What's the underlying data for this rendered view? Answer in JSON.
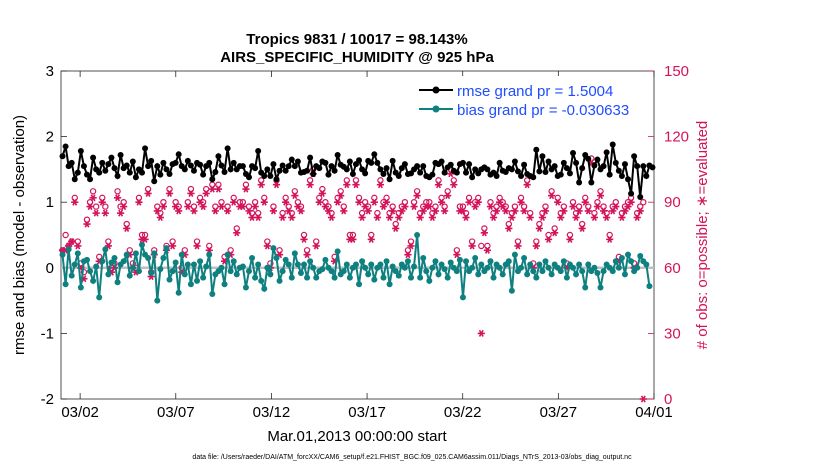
{
  "chart_data": {
    "type": "line",
    "title": "Tropics 9831 / 10017 = 98.143%",
    "subtitle": "AIRS_SPECIFIC_HUMIDITY @ 925 hPa",
    "xlabel": "Mar.01,2013 00:00:00 start",
    "ylabel": "rmse and bias (model - observation)",
    "y2label": "# of obs: o=possible; ∗=evaluated",
    "footer": "data file: /Users/raeder/DAI/ATM_forcXX/CAM6_setup/f.e21.FHIST_BGC.f09_025.CAM6assim.011/Diags_NTrS_2013-03/obs_diag_output.nc",
    "xlim": [
      0,
      31
    ],
    "ylim": [
      -2,
      3
    ],
    "y2lim": [
      0,
      150
    ],
    "x_ticks": [
      1,
      6,
      11,
      16,
      21,
      26,
      31
    ],
    "x_tick_labels": [
      "03/02",
      "03/07",
      "03/12",
      "03/17",
      "03/22",
      "03/27",
      "04/01"
    ],
    "y_ticks": [
      -2,
      -1,
      0,
      1,
      2,
      3
    ],
    "y_tick_labels": [
      "-2",
      "-1",
      "0",
      "1",
      "2",
      "3"
    ],
    "y2_ticks": [
      0,
      30,
      60,
      90,
      120,
      150
    ],
    "y2_tick_labels": [
      "0",
      "30",
      "60",
      "90",
      "120",
      "150"
    ],
    "legend_position": "top-right",
    "series": [
      {
        "name": "rmse grand pr = 1.5004",
        "color": "#000000",
        "axis": "left",
        "values": [
          1.7,
          1.85,
          1.55,
          1.6,
          1.35,
          1.45,
          1.78,
          1.55,
          1.42,
          1.35,
          1.68,
          1.5,
          1.45,
          1.6,
          1.48,
          1.58,
          1.68,
          1.52,
          1.4,
          1.72,
          1.52,
          1.56,
          1.45,
          1.62,
          1.38,
          1.5,
          1.45,
          1.82,
          1.55,
          1.63,
          1.32,
          1.55,
          1.42,
          1.6,
          1.5,
          1.43,
          1.58,
          1.6,
          1.73,
          1.55,
          1.5,
          1.63,
          1.56,
          1.48,
          1.6,
          1.57,
          1.42,
          1.55,
          1.6,
          1.35,
          1.46,
          1.7,
          1.56,
          1.46,
          1.82,
          1.5,
          1.6,
          1.5,
          1.55,
          1.55,
          1.43,
          1.38,
          1.55,
          1.52,
          1.78,
          1.45,
          1.4,
          1.5,
          1.4,
          1.58,
          1.35,
          1.48,
          1.56,
          1.48,
          1.55,
          1.65,
          1.55,
          1.62,
          1.45,
          1.46,
          1.48,
          1.68,
          1.43,
          1.55,
          1.52,
          1.62,
          1.6,
          1.42,
          1.55,
          1.48,
          1.72,
          1.57,
          1.54,
          1.5,
          1.62,
          1.43,
          1.58,
          1.64,
          1.5,
          1.44,
          1.63,
          1.6,
          1.73,
          1.6,
          1.5,
          1.43,
          1.52,
          1.35,
          1.63,
          1.45,
          1.4,
          1.52,
          1.58,
          1.43,
          1.44,
          1.5,
          1.55,
          1.45,
          1.55,
          1.4,
          1.38,
          1.42,
          1.6,
          1.58,
          1.62,
          1.45,
          1.53,
          1.57,
          1.48,
          1.45,
          1.58,
          1.6,
          1.45,
          1.58,
          1.38,
          1.5,
          1.44,
          1.5,
          1.53,
          1.5,
          1.42,
          1.45,
          1.4,
          1.6,
          1.48,
          1.46,
          1.52,
          1.5,
          1.62,
          1.47,
          1.4,
          1.57,
          1.43,
          1.4,
          1.38,
          1.8,
          1.47,
          1.7,
          1.46,
          1.62,
          1.5,
          1.55,
          1.4,
          1.42,
          1.6,
          1.52,
          1.44,
          1.75,
          1.6,
          1.3,
          1.52,
          1.72,
          1.66,
          1.3,
          1.56,
          1.65,
          1.5,
          1.55,
          1.76,
          1.42,
          1.88,
          1.6,
          1.48,
          1.4,
          1.58,
          1.35,
          1.13,
          1.7,
          1.55,
          1.08,
          1.55,
          1.4,
          1.56,
          1.53
        ]
      },
      {
        "name": "bias grand pr = -0.030633",
        "color": "#0E8080",
        "axis": "left",
        "values": [
          0.2,
          -0.25,
          0.28,
          -0.12,
          0.05,
          0.22,
          -0.3,
          0.1,
          0.12,
          -0.05,
          -0.2,
          0.02,
          -0.45,
          0.1,
          0.28,
          -0.1,
          0.08,
          0.15,
          -0.22,
          0.05,
          0.1,
          0.2,
          -0.12,
          0.0,
          0.22,
          -0.05,
          0.35,
          0.2,
          0.15,
          -0.08,
          0.22,
          -0.5,
          -0.02,
          0.15,
          0.3,
          -0.18,
          -0.05,
          0.08,
          -0.38,
          0.2,
          -0.1,
          0.05,
          -0.25,
          0.05,
          -0.2,
          0.1,
          -0.15,
          0.02,
          0.2,
          -0.4,
          -0.1,
          -0.05,
          0.0,
          -0.25,
          0.2,
          -0.05,
          0.1,
          -0.1,
          0.0,
          0.02,
          -0.3,
          -0.05,
          0.15,
          -0.15,
          0.05,
          -0.2,
          -0.32,
          0.0,
          -0.1,
          0.3,
          0.15,
          -0.2,
          -0.05,
          0.12,
          0.05,
          -0.15,
          0.22,
          0.05,
          -0.08,
          0.05,
          -0.15,
          0.1,
          0.0,
          -0.15,
          -0.05,
          -0.02,
          0.12,
          0.0,
          -0.05,
          -0.15,
          0.25,
          -0.1,
          -0.05,
          0.05,
          -0.15,
          0.0,
          0.05,
          -0.25,
          0.1,
          0.0,
          -0.1,
          0.05,
          -0.18,
          0.0,
          0.05,
          -0.15,
          0.1,
          -0.25,
          0.02,
          -0.05,
          -0.12,
          0.05,
          0.0,
          0.1,
          -0.15,
          0.02,
          0.5,
          -0.15,
          0.15,
          -0.05,
          -0.2,
          0.0,
          0.1,
          -0.1,
          0.05,
          -0.02,
          -0.15,
          0.08,
          0.0,
          -0.05,
          0.12,
          -0.45,
          0.1,
          -0.05,
          0.0,
          0.15,
          -0.1,
          0.05,
          -0.05,
          0.0,
          0.1,
          -0.15,
          0.05,
          0.0,
          -0.1,
          0.05,
          0.1,
          -0.35,
          0.2,
          -0.05,
          0.0,
          0.15,
          -0.1,
          0.05,
          -0.05,
          -0.15,
          0.05,
          -0.05,
          0.1,
          0.0,
          -0.1,
          0.05,
          0.0,
          -0.05,
          0.1,
          -0.15,
          0.05,
          0.0,
          -0.1,
          0.05,
          -0.05,
          -0.3,
          0.05,
          -0.05,
          0.0,
          -0.08,
          -0.3,
          -0.05,
          0.05,
          0.0,
          -0.05,
          0.1,
          0.0,
          0.15,
          -0.1,
          0.2,
          0.1,
          -0.05,
          0.0,
          0.18,
          0.1,
          0.05,
          -0.28
        ]
      },
      {
        "name": "obs possible",
        "marker": "o",
        "color": "#D4145A",
        "axis": "right",
        "values": [
          68,
          75,
          70,
          72,
          92,
          72,
          62,
          58,
          82,
          90,
          95,
          88,
          65,
          92,
          88,
          72,
          60,
          62,
          95,
          88,
          90,
          80,
          68,
          62,
          60,
          92,
          75,
          75,
          96,
          58,
          68,
          88,
          85,
          90,
          70,
          96,
          72,
          90,
          88,
          60,
          68,
          90,
          96,
          88,
          72,
          92,
          90,
          96,
          70,
          98,
          88,
          98,
          90,
          65,
          88,
          68,
          92,
          78,
          90,
          90,
          98,
          88,
          85,
          90,
          85,
          100,
          92,
          72,
          62,
          88,
          100,
          68,
          85,
          92,
          88,
          85,
          95,
          90,
          88,
          75,
          68,
          100,
          105,
          72,
          92,
          96,
          90,
          88,
          85,
          65,
          92,
          95,
          88,
          100,
          75,
          75,
          100,
          92,
          85,
          90,
          88,
          75,
          92,
          85,
          100,
          90,
          92,
          85,
          88,
          80,
          85,
          88,
          90,
          68,
          72,
          90,
          95,
          85,
          88,
          90,
          90,
          85,
          88,
          100,
          92,
          88,
          95,
          105,
          100,
          68,
          88,
          88,
          85,
          92,
          72,
          90,
          92,
          70,
          78,
          70,
          90,
          85,
          88,
          92,
          90,
          88,
          80,
          85,
          88,
          72,
          92,
          88,
          100,
          85,
          62,
          72,
          80,
          85,
          88,
          75,
          95,
          78,
          92,
          85,
          88,
          62,
          75,
          90,
          85,
          88,
          80,
          92,
          88,
          110,
          85,
          90,
          95,
          88,
          85,
          75,
          88,
          90,
          65,
          85,
          88,
          90,
          92,
          62,
          85,
          88,
          90
        ]
      },
      {
        "name": "obs evaluated",
        "marker": "*",
        "color": "#D4145A",
        "axis": "right",
        "values": [
          68,
          68,
          70,
          72,
          90,
          70,
          60,
          55,
          80,
          88,
          92,
          85,
          63,
          90,
          85,
          70,
          58,
          60,
          92,
          85,
          88,
          78,
          66,
          60,
          58,
          90,
          73,
          73,
          94,
          56,
          66,
          86,
          83,
          88,
          68,
          94,
          70,
          88,
          86,
          58,
          66,
          88,
          94,
          86,
          70,
          90,
          88,
          94,
          68,
          96,
          86,
          96,
          88,
          63,
          86,
          66,
          90,
          76,
          88,
          88,
          96,
          86,
          83,
          88,
          83,
          98,
          90,
          70,
          60,
          86,
          98,
          66,
          83,
          90,
          86,
          83,
          93,
          88,
          86,
          73,
          66,
          98,
          103,
          70,
          90,
          94,
          88,
          86,
          83,
          63,
          90,
          93,
          86,
          98,
          73,
          73,
          98,
          90,
          83,
          88,
          86,
          73,
          90,
          83,
          98,
          88,
          90,
          83,
          86,
          78,
          83,
          86,
          88,
          66,
          70,
          88,
          93,
          83,
          86,
          88,
          88,
          83,
          86,
          98,
          90,
          86,
          93,
          103,
          98,
          66,
          86,
          86,
          83,
          90,
          70,
          88,
          90,
          30,
          76,
          68,
          88,
          83,
          86,
          90,
          88,
          86,
          78,
          83,
          86,
          70,
          90,
          86,
          98,
          83,
          60,
          70,
          78,
          83,
          86,
          73,
          93,
          76,
          90,
          83,
          86,
          60,
          73,
          88,
          83,
          86,
          78,
          90,
          86,
          108,
          83,
          88,
          93,
          86,
          83,
          73,
          86,
          88,
          63,
          83,
          86,
          88,
          90,
          60,
          83,
          86,
          0
        ]
      }
    ]
  }
}
